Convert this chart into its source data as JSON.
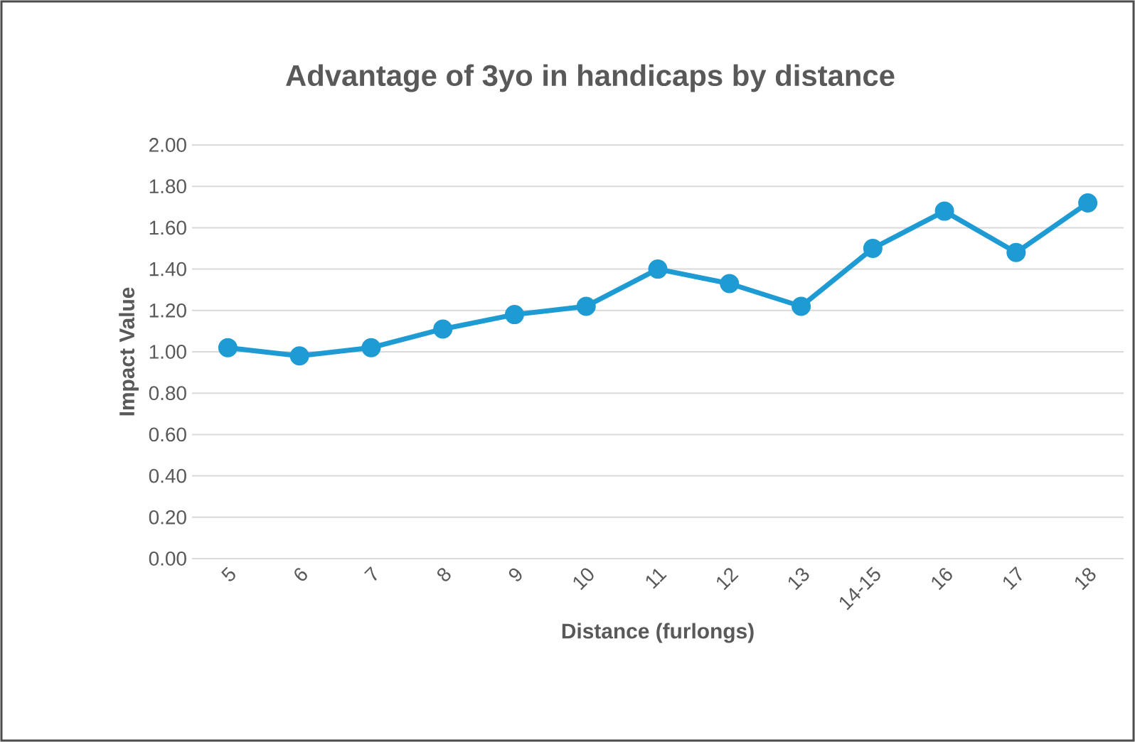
{
  "chart_data": {
    "type": "line",
    "title": "Advantage of 3yo in handicaps by distance",
    "xlabel": "Distance (furlongs)",
    "ylabel": "Impact Value",
    "categories": [
      "5",
      "6",
      "7",
      "8",
      "9",
      "10",
      "11",
      "12",
      "13",
      "14-15",
      "16",
      "17",
      "18"
    ],
    "series": [
      {
        "color": "#1f9bd4",
        "values": [
          1.02,
          0.98,
          1.02,
          1.11,
          1.18,
          1.22,
          1.4,
          1.33,
          1.22,
          1.5,
          1.68,
          1.48,
          1.72
        ]
      }
    ],
    "ylim": [
      0,
      2
    ],
    "yticks": [
      {
        "value": 0,
        "label": "0.00"
      },
      {
        "value": 0.2,
        "label": "0.20"
      },
      {
        "value": 0.4,
        "label": "0.40"
      },
      {
        "value": 0.6,
        "label": "0.60"
      },
      {
        "value": 0.8,
        "label": "0.80"
      },
      {
        "value": 1,
        "label": "1.00"
      },
      {
        "value": 1.2,
        "label": "1.20"
      },
      {
        "value": 1.4,
        "label": "1.40"
      },
      {
        "value": 1.6,
        "label": "1.60"
      },
      {
        "value": 1.8,
        "label": "1.80"
      },
      {
        "value": 2,
        "label": "2.00"
      }
    ],
    "grid": "y",
    "marker": "circle",
    "line_style": "solid"
  }
}
